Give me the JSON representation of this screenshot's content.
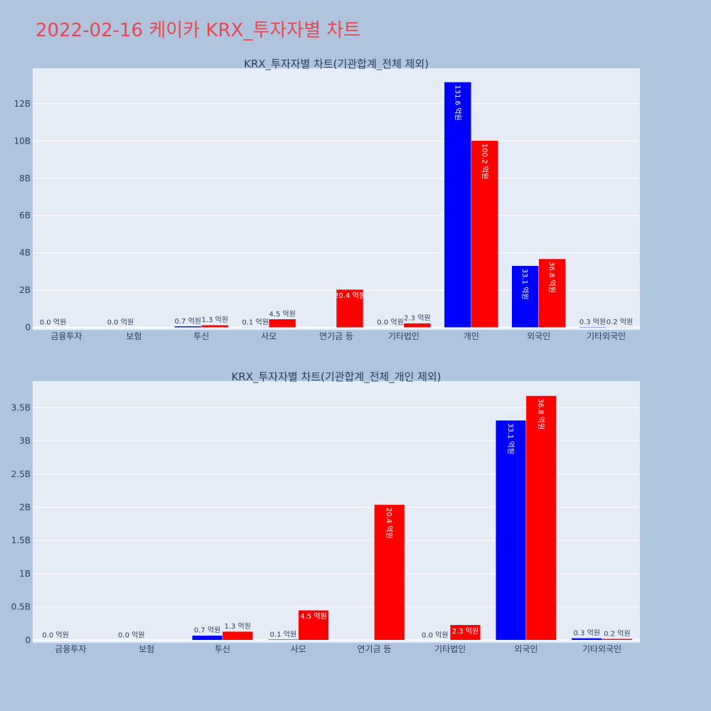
{
  "page_title": "2022-02-16 케이카 KRX_투자자별 차트",
  "colors": {
    "buy": "#0000ff",
    "sell": "#ff0000",
    "plot_bg": "#e5ecf6",
    "page_bg": "#b0c4de",
    "title": "#e8474f"
  },
  "chart_data": [
    {
      "type": "bar",
      "title": "KRX_투자자별 차트(기관합계_전체 제외)",
      "categories": [
        "금융투자",
        "보험",
        "투신",
        "사모",
        "연기금 등",
        "기타법인",
        "개인",
        "외국인",
        "기타외국인"
      ],
      "series": [
        {
          "values": [
            0,
            0,
            70000000,
            10000000,
            0,
            0,
            13160000000,
            3310000000,
            30000000
          ],
          "labels": [
            "0.0 억원",
            "0.0 억원",
            "0.7 억원",
            "0.1 억원",
            "",
            "0.0 억원",
            "131.6 억원",
            "33.1 억원",
            "0.3 억원"
          ]
        },
        {
          "values": [
            0,
            0,
            130000000,
            450000000,
            2040000000,
            230000000,
            10020000000,
            3680000000,
            20000000
          ],
          "labels": [
            "",
            "",
            "1.3 억원",
            "4.5 억원",
            "20.4 억원",
            "2.3 억원",
            "100.2 억원",
            "36.8 억원",
            "0.2 억원"
          ]
        }
      ],
      "ylim": [
        -130000000,
        13900000000
      ],
      "yticks": [
        0,
        2000000000,
        4000000000,
        6000000000,
        8000000000,
        10000000000,
        12000000000
      ],
      "ytick_labels": [
        "0",
        "2B",
        "4B",
        "6B",
        "8B",
        "10B",
        "12B"
      ],
      "grid": true
    },
    {
      "type": "bar",
      "title": "KRX_투자자별 차트(기관합계_전체_개인 제외)",
      "categories": [
        "금융투자",
        "보험",
        "투신",
        "사모",
        "연기금 등",
        "기타법인",
        "외국인",
        "기타외국인"
      ],
      "series": [
        {
          "values": [
            0,
            0,
            70000000,
            10000000,
            0,
            0,
            3310000000,
            30000000
          ],
          "labels": [
            "0.0 억원",
            "0.0 억원",
            "0.7 억원",
            "0.1 억원",
            "",
            "0.0 억원",
            "33.1 억원",
            "0.3 억원"
          ]
        },
        {
          "values": [
            0,
            0,
            130000000,
            450000000,
            2040000000,
            230000000,
            3680000000,
            20000000
          ],
          "labels": [
            "",
            "",
            "1.3 억원",
            "4.5 억원",
            "20.4 억원",
            "2.3 억원",
            "36.8 억원",
            "0.2 억원"
          ]
        }
      ],
      "ylim": [
        -40000000,
        3900000000
      ],
      "yticks": [
        0,
        500000000,
        1000000000,
        1500000000,
        2000000000,
        2500000000,
        3000000000,
        3500000000
      ],
      "ytick_labels": [
        "0",
        "0.5B",
        "1B",
        "1.5B",
        "2B",
        "2.5B",
        "3B",
        "3.5B"
      ],
      "grid": true
    }
  ]
}
